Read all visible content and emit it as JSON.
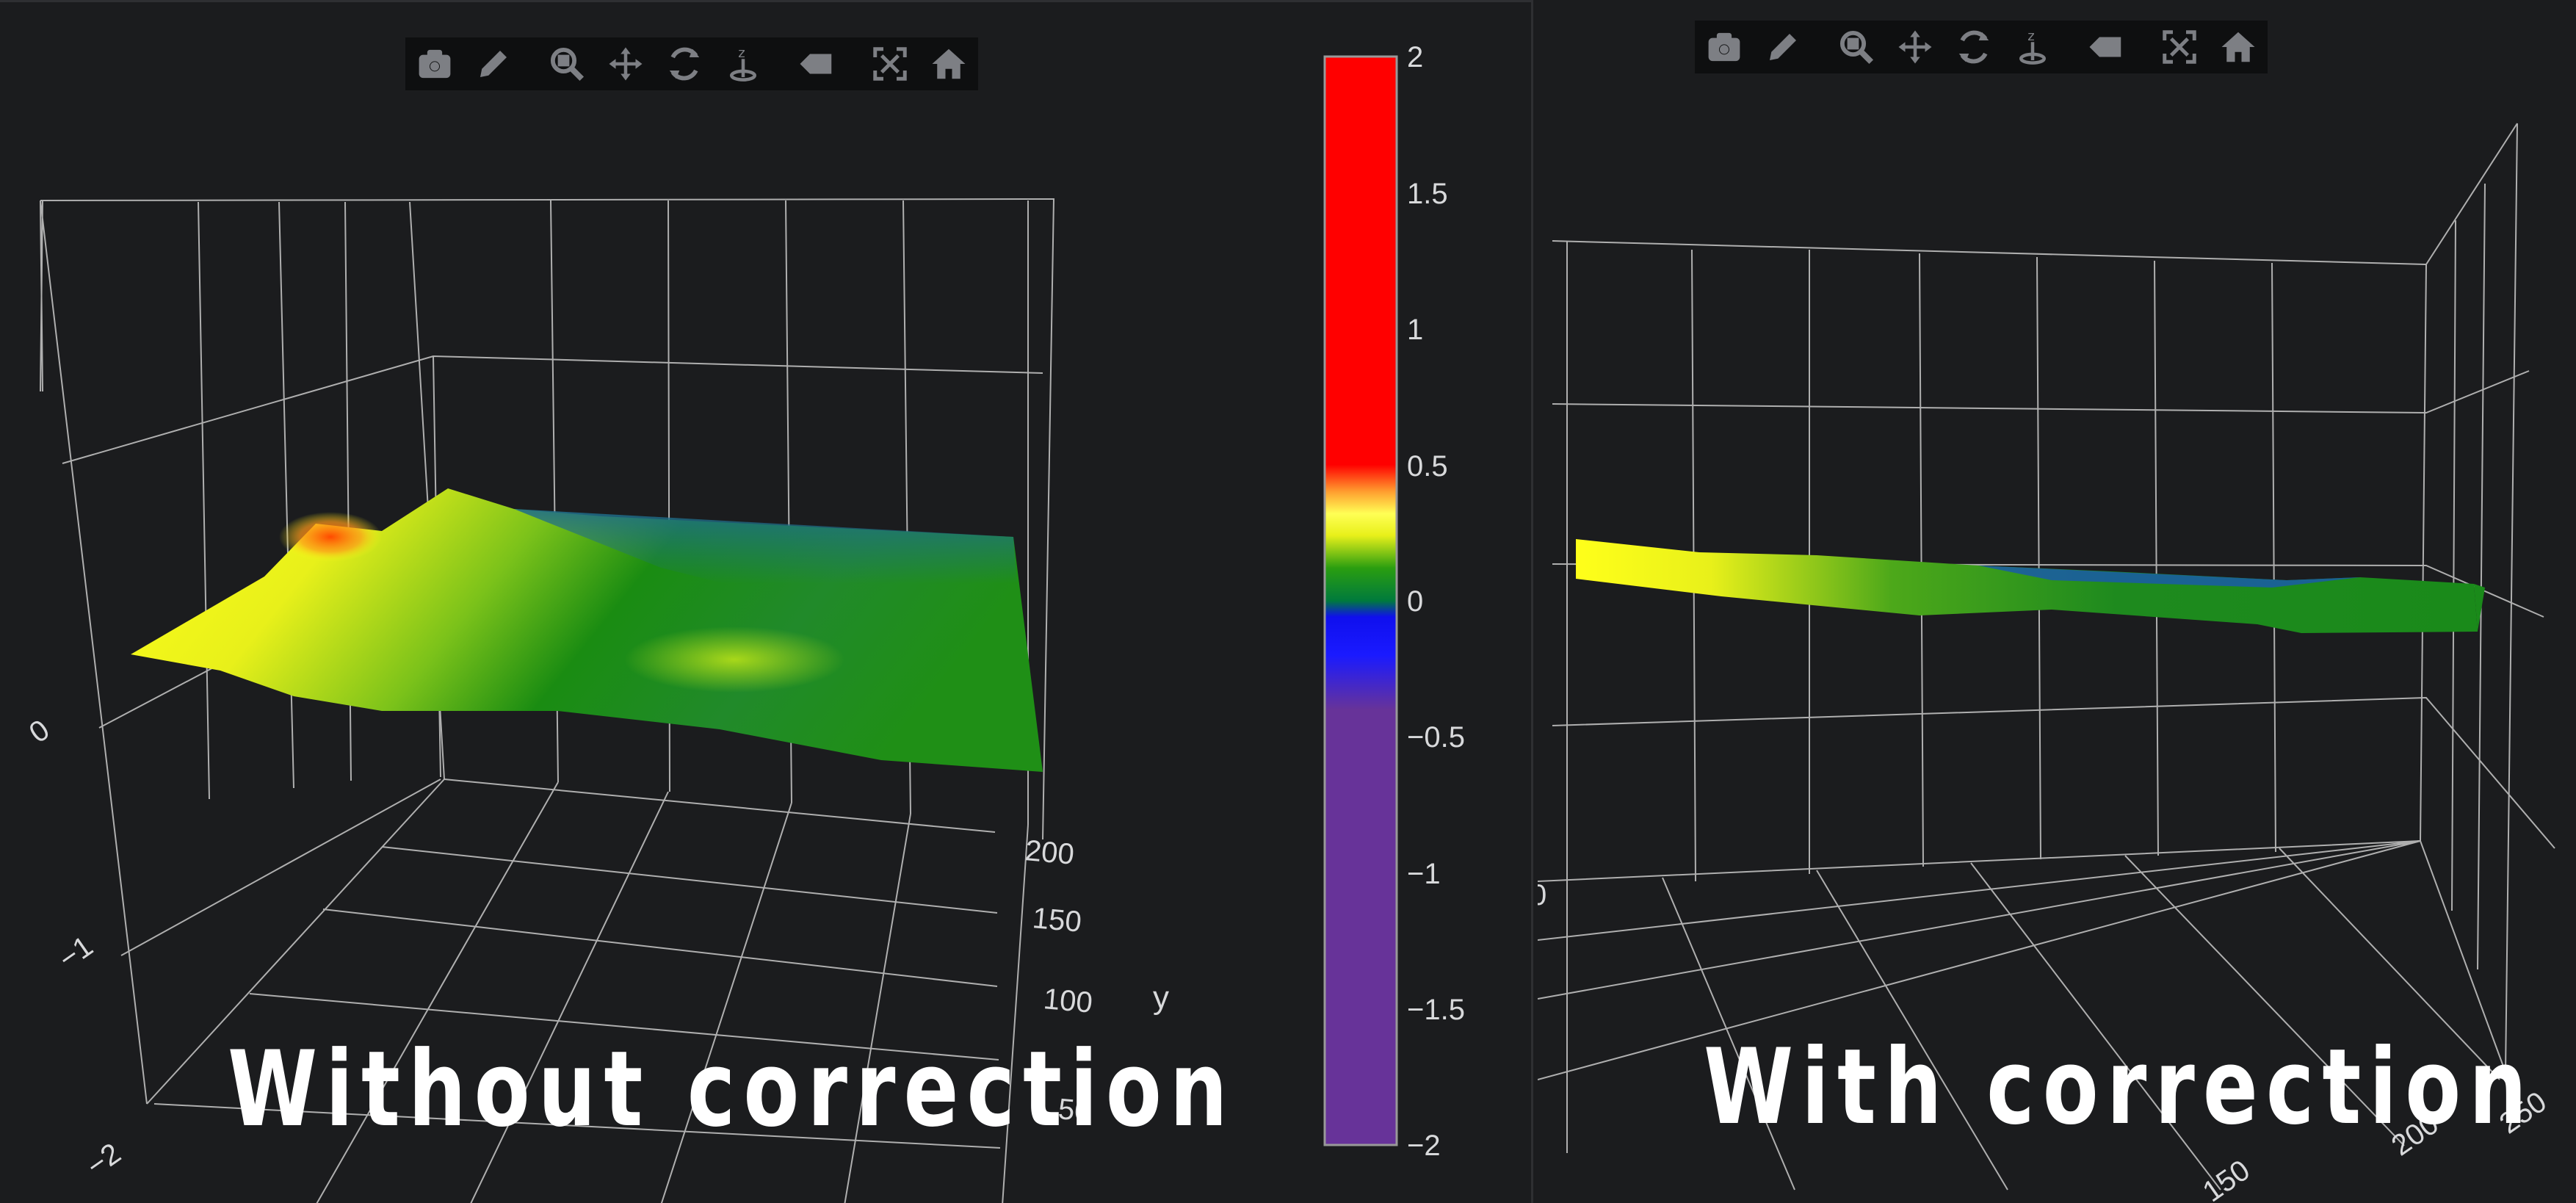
{
  "toolbar": {
    "icons": [
      "camera-icon",
      "pencil-icon",
      "zoom-icon",
      "pan-icon",
      "orbit-rotation-icon",
      "turntable-rotation-icon",
      "reset-camera-icon",
      "autoscale-icon",
      "home-icon"
    ]
  },
  "left_plot": {
    "caption": "Without correction",
    "z_ticks": [
      "0",
      "−1",
      "−2"
    ],
    "y_ticks": [
      "200",
      "150",
      "100",
      "50"
    ],
    "y_axis_label": "y"
  },
  "colorbar": {
    "ticks": [
      "2",
      "1.5",
      "1",
      "0.5",
      "0",
      "−0.5",
      "−1",
      "−1.5",
      "−2"
    ],
    "range": [
      -2,
      2
    ],
    "colors": [
      "#663399",
      "#0000ff",
      "#008000",
      "#ffff00",
      "#ff8c00",
      "#ff0000"
    ]
  },
  "right_plot": {
    "caption": "With correction",
    "tick_labels": [
      "250",
      "200",
      "150",
      "0"
    ]
  },
  "chart_data": [
    {
      "type": "surface",
      "title": "",
      "zlim": [
        -2,
        2
      ],
      "yticks": [
        50,
        100,
        150,
        200
      ],
      "zticks": [
        -2,
        -1,
        0
      ],
      "ylabel": "y",
      "grid": true,
      "colorscale_range": [
        -2,
        2
      ]
    },
    {
      "type": "surface",
      "title": "",
      "zlim": [
        -2,
        2
      ],
      "visible_ticks": [
        250,
        200
      ],
      "grid": true
    }
  ]
}
